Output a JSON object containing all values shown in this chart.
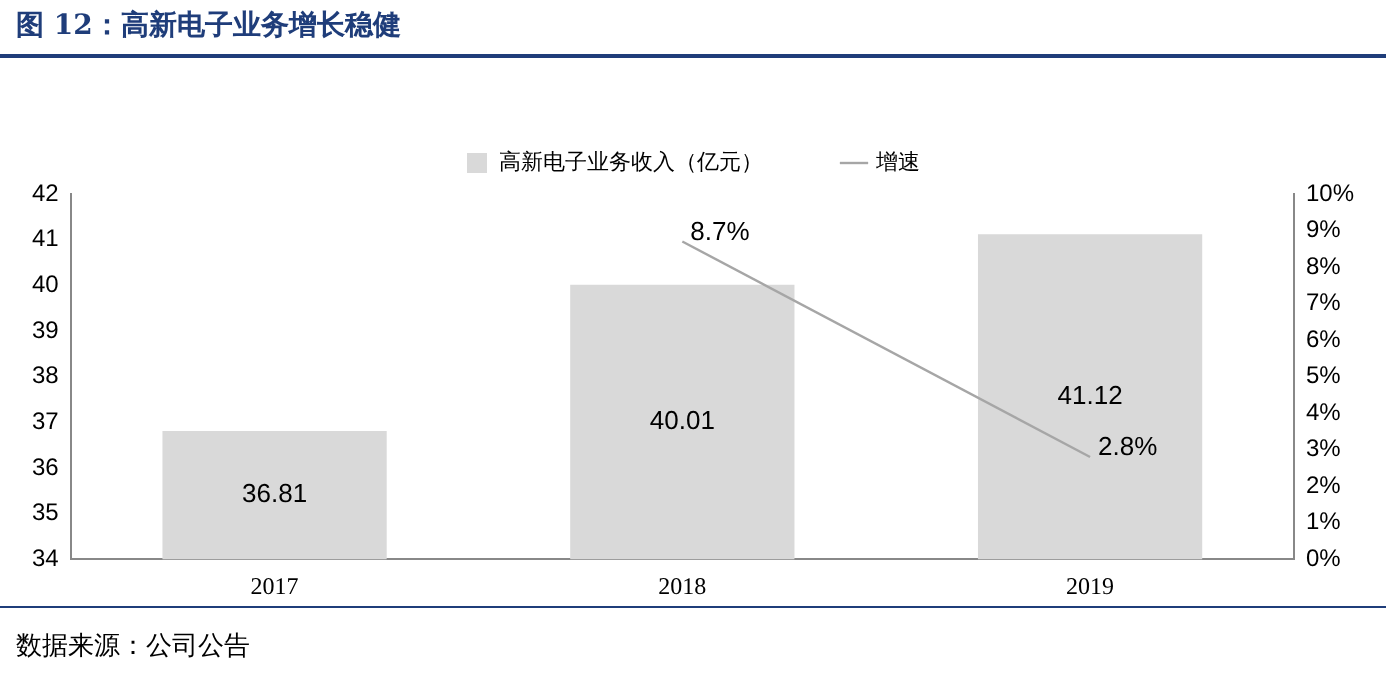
{
  "chart_data": {
    "type": "bar",
    "title": "图 12：高新电子业务增长稳健",
    "categories": [
      "2017",
      "2018",
      "2019"
    ],
    "series": [
      {
        "name": "高新电子业务收入（亿元）",
        "color": "#d9d9d9",
        "values": [
          36.81,
          40.01,
          41.12
        ]
      },
      {
        "name": "增速",
        "type": "line",
        "axis": "y2",
        "color": "#a6a6a6",
        "values": [
          null,
          8.7,
          2.8
        ],
        "value_labels": [
          null,
          "8.7%",
          "2.8%"
        ]
      }
    ],
    "ylim": [
      34,
      42
    ],
    "yticks": [
      34,
      35,
      36,
      37,
      38,
      39,
      40,
      41,
      42
    ],
    "y2lim": [
      0,
      10
    ],
    "y2ticks": [
      {
        "value": 0,
        "label": "0%"
      },
      {
        "value": 1,
        "label": "1%"
      },
      {
        "value": 2,
        "label": "2%"
      },
      {
        "value": 3,
        "label": "3%"
      },
      {
        "value": 4,
        "label": "4%"
      },
      {
        "value": 5,
        "label": "5%"
      },
      {
        "value": 6,
        "label": "6%"
      },
      {
        "value": 7,
        "label": "7%"
      },
      {
        "value": 8,
        "label": "8%"
      },
      {
        "value": 9,
        "label": "9%"
      },
      {
        "value": 10,
        "label": "10%"
      }
    ],
    "grid": false,
    "legend": "top",
    "data_labels": true,
    "marker": "none",
    "line_style": "solid",
    "annotations": [
      "数据来源：公司公告"
    ]
  }
}
